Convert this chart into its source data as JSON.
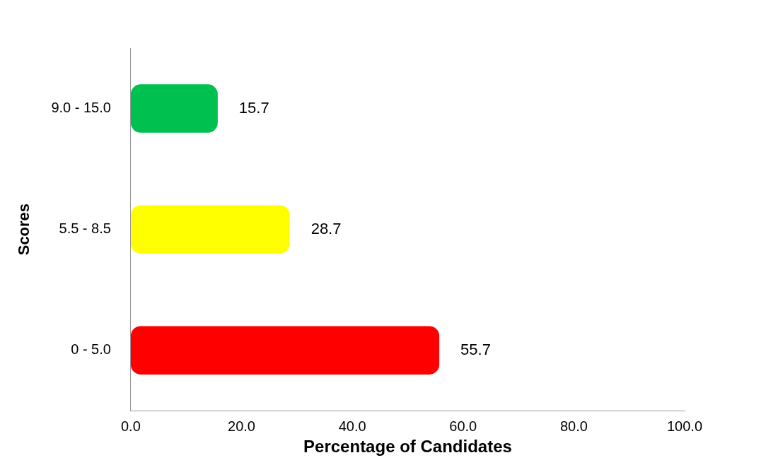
{
  "chart_data": {
    "type": "bar",
    "orientation": "horizontal",
    "xlabel": "Percentage of Candidates",
    "ylabel": "Scores",
    "categories": [
      "9.0 - 15.0",
      "5.5 - 8.5",
      "0 - 5.0"
    ],
    "values": [
      15.7,
      28.7,
      55.7
    ],
    "colors": [
      "#00c050",
      "#ffff00",
      "#ff0000"
    ],
    "xlim": [
      0,
      100
    ],
    "xticks": [
      {
        "value": 0,
        "label": "0.0"
      },
      {
        "value": 20,
        "label": "20.0"
      },
      {
        "value": 40,
        "label": "40.0"
      },
      {
        "value": 60,
        "label": "60.0"
      },
      {
        "value": 80,
        "label": "80.0"
      },
      {
        "value": 100,
        "label": "100.0"
      }
    ],
    "data_labels": true,
    "grid": false,
    "legend": false
  }
}
